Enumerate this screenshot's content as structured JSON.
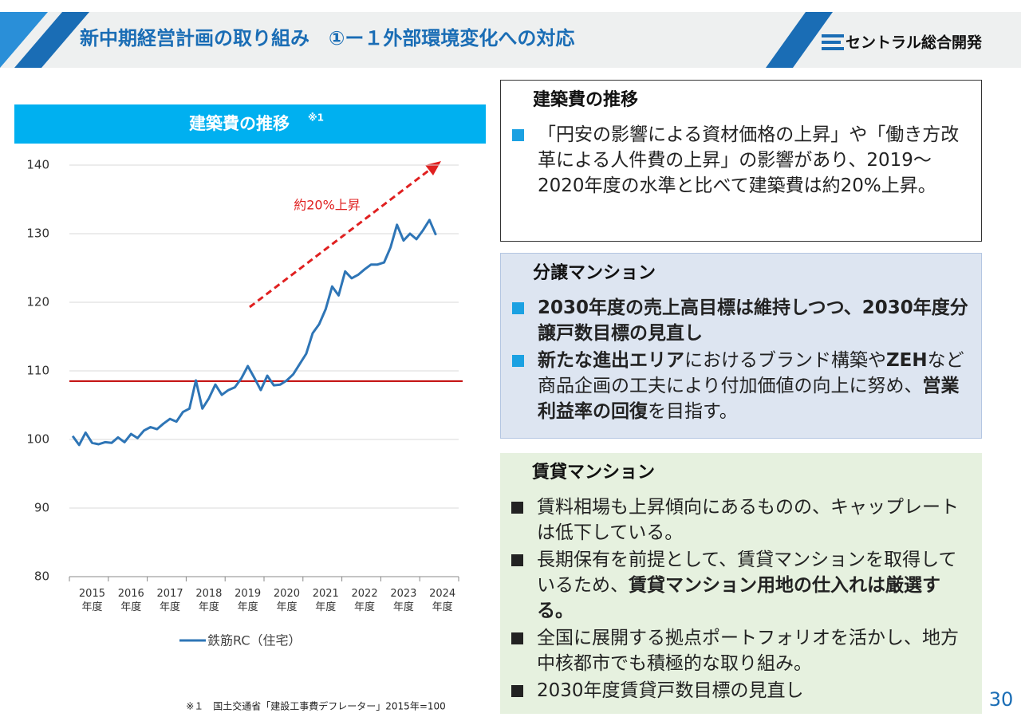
{
  "header": {
    "title": "新中期経営計画の取り組み　①ー１外部環境変化への対応",
    "logo": "セントラル総合開発"
  },
  "chart_data": {
    "type": "line",
    "title": "建築費の推移",
    "title_note": "※1",
    "annotation": "約20%上昇",
    "categories": [
      null,
      null,
      null,
      "2015\n年度",
      null,
      null,
      null,
      null,
      null,
      "2016\n年度",
      null,
      null,
      null,
      null,
      null,
      "2017\n年度",
      null,
      null,
      null,
      null,
      null,
      "2018\n年度",
      null,
      null,
      null,
      null,
      null,
      "2019\n年度",
      null,
      null,
      null,
      null,
      null,
      "2020\n年度",
      null,
      null,
      null,
      null,
      null,
      "2021\n年度",
      null,
      null,
      null,
      null,
      null,
      "2022\n年度",
      null,
      null,
      null,
      null,
      null,
      "2023\n年度",
      null,
      null,
      null,
      null,
      null,
      "2024\n年度",
      null,
      null
    ],
    "series": [
      {
        "name": "鉄筋RC（住宅）",
        "color": "#2e75b6",
        "values": [
          100.5,
          99.2,
          101.0,
          99.5,
          99.3,
          99.6,
          99.5,
          100.3,
          99.6,
          100.8,
          100.2,
          101.3,
          101.8,
          101.5,
          102.3,
          103.0,
          102.6,
          104.0,
          104.5,
          108.6,
          104.5,
          106.0,
          108.0,
          106.5,
          107.2,
          107.6,
          108.9,
          110.7,
          109.0,
          107.2,
          109.3,
          107.9,
          108.0,
          108.6,
          109.5,
          111.0,
          112.5,
          115.5,
          116.8,
          119.0,
          122.3,
          121.0,
          124.5,
          123.5,
          124.0,
          124.8,
          125.5,
          125.5,
          125.8,
          128.0,
          131.3,
          129.0,
          130.0,
          129.2,
          130.5,
          132.0,
          129.8,
          null,
          null,
          null
        ]
      }
    ],
    "reference_line": 108.5,
    "reference_color": "#c00000",
    "ylim": [
      80,
      140
    ],
    "yticks": [
      80,
      90,
      100,
      110,
      120,
      130,
      140
    ],
    "grid": true
  },
  "panels": [
    {
      "title": "建築費の推移",
      "marker_color": "#1ba1e2",
      "bullets": [
        [
          "「円安の影響による資材価格の上昇」や「働き方改革による人件費の上昇」の影響があり、2019～2020年度の水準と比べて建築費は約20%上昇。"
        ]
      ]
    },
    {
      "title": "分譲マンション",
      "marker_color": "#1ba1e2",
      "bullets": [
        [
          {
            "text": "2030年度の売上高目標は維持しつつ、2030年度分譲戸数目標の見直し",
            "bold": true
          }
        ],
        [
          {
            "text": "新たな進出エリア",
            "bold": true
          },
          "におけるブランド構築や",
          {
            "text": "ZEH",
            "bold": true
          },
          "など商品企画の工夫により付加価値の向上に努め、",
          {
            "text": "営業利益率の回復",
            "bold": true
          },
          "を目指す。"
        ]
      ]
    },
    {
      "title": "賃貸マンション",
      "marker_color": "#222222",
      "bullets": [
        [
          "賃料相場も上昇傾向にあるものの、キャップレートは低下している。"
        ],
        [
          "長期保有を前提として、賃貸マンションを取得しているため、",
          {
            "text": "賃貸マンション用地の仕入れは厳選する。",
            "bold": true
          }
        ],
        [
          "全国に展開する拠点ポートフォリオを活かし、地方中核都市でも積極的な取り組み。"
        ],
        [
          "2030年度賃貸戸数目標の見直し"
        ]
      ]
    }
  ],
  "footnote": "※１　国土交通省「建設工事費デフレーター」2015年=100",
  "page_number": "30"
}
